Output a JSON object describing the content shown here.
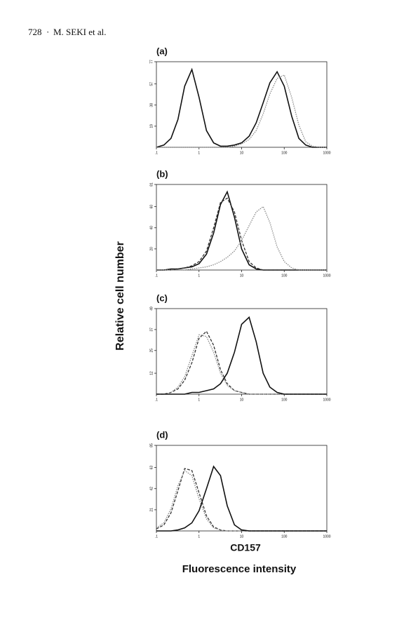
{
  "header": {
    "page": "728",
    "author": "M. SEKI et al."
  },
  "figure": {
    "ylabel": "Relative cell number",
    "marker": "CD157",
    "xlabel": "Fluorescence intensity"
  },
  "chart_data": [
    {
      "type": "line",
      "title": "(a)",
      "log_x": true,
      "x": [
        0.1,
        0.15,
        0.22,
        0.32,
        0.46,
        0.68,
        1,
        1.5,
        2.2,
        3.2,
        4.6,
        6.8,
        10,
        15,
        22,
        32,
        46,
        68,
        100,
        150,
        220,
        320,
        460,
        680,
        1000
      ],
      "xlim": [
        0.1,
        1000
      ],
      "xticks": [
        {
          "value": 0.1,
          "label": ".1"
        },
        1,
        10,
        100,
        1000
      ],
      "ylim": [
        0,
        77
      ],
      "yticks": [
        19,
        38,
        57,
        77
      ],
      "series": [
        {
          "color": "#111111",
          "style": "solid",
          "values": [
            0,
            2,
            8,
            25,
            55,
            70,
            45,
            15,
            4,
            1,
            1,
            2,
            4,
            10,
            22,
            40,
            58,
            68,
            55,
            28,
            8,
            2,
            0,
            0,
            0
          ]
        },
        {
          "color": "#888888",
          "style": "dotted",
          "values": [
            0,
            0,
            0,
            0,
            0,
            0,
            0,
            0,
            0,
            0,
            0,
            1,
            3,
            7,
            15,
            30,
            48,
            62,
            65,
            45,
            20,
            5,
            1,
            0,
            0
          ]
        }
      ]
    },
    {
      "type": "line",
      "title": "(b)",
      "log_x": true,
      "x": [
        0.1,
        0.15,
        0.22,
        0.32,
        0.46,
        0.68,
        1,
        1.5,
        2.2,
        3.2,
        4.6,
        6.8,
        10,
        15,
        22,
        32,
        46,
        68,
        100,
        150,
        220,
        320,
        460,
        680,
        1000
      ],
      "xlim": [
        0.1,
        1000
      ],
      "xticks": [
        {
          "value": 0.1,
          "label": ".1"
        },
        1,
        10,
        100,
        1000
      ],
      "ylim": [
        0,
        81
      ],
      "yticks": [
        20,
        40,
        60,
        81
      ],
      "series": [
        {
          "color": "#111111",
          "style": "solid",
          "values": [
            0,
            0,
            1,
            1,
            2,
            3,
            6,
            15,
            35,
            62,
            74,
            50,
            20,
            5,
            1,
            0,
            0,
            0,
            0,
            0,
            0,
            0,
            0,
            0,
            0
          ]
        },
        {
          "color": "#333333",
          "style": "dashed",
          "values": [
            0,
            0,
            0,
            1,
            2,
            4,
            8,
            18,
            40,
            64,
            68,
            55,
            28,
            8,
            2,
            0,
            0,
            0,
            0,
            0,
            0,
            0,
            0,
            0,
            0
          ]
        },
        {
          "color": "#888888",
          "style": "dotted",
          "values": [
            0,
            0,
            0,
            0,
            0,
            1,
            2,
            3,
            5,
            8,
            12,
            18,
            28,
            42,
            55,
            60,
            45,
            22,
            8,
            2,
            0,
            0,
            0,
            0,
            0
          ]
        }
      ]
    },
    {
      "type": "line",
      "title": "(c)",
      "log_x": true,
      "x": [
        0.1,
        0.15,
        0.22,
        0.32,
        0.46,
        0.68,
        1,
        1.5,
        2.2,
        3.2,
        4.6,
        6.8,
        10,
        15,
        22,
        32,
        46,
        68,
        100,
        150,
        220,
        320,
        460,
        680,
        1000
      ],
      "xlim": [
        0.1,
        1000
      ],
      "xticks": [
        {
          "value": 0.1,
          "label": ".1"
        },
        1,
        10,
        100,
        1000
      ],
      "ylim": [
        0,
        49
      ],
      "yticks": [
        12,
        25,
        37,
        49
      ],
      "series": [
        {
          "color": "#333333",
          "style": "dashed",
          "values": [
            0,
            0,
            1,
            3,
            8,
            18,
            32,
            36,
            28,
            14,
            6,
            2,
            1,
            0,
            0,
            0,
            0,
            0,
            0,
            0,
            0,
            0,
            0,
            0,
            0
          ]
        },
        {
          "color": "#888888",
          "style": "dotted",
          "values": [
            0,
            0,
            1,
            4,
            10,
            22,
            34,
            33,
            24,
            12,
            5,
            2,
            1,
            0,
            0,
            0,
            0,
            0,
            0,
            0,
            0,
            0,
            0,
            0,
            0
          ]
        },
        {
          "color": "#111111",
          "style": "solid",
          "values": [
            0,
            0,
            0,
            0,
            0,
            1,
            1,
            2,
            3,
            6,
            12,
            24,
            40,
            44,
            30,
            12,
            4,
            1,
            0,
            0,
            0,
            0,
            0,
            0,
            0
          ]
        }
      ]
    },
    {
      "type": "line",
      "title": "(d)",
      "log_x": true,
      "x": [
        0.1,
        0.15,
        0.22,
        0.32,
        0.46,
        0.68,
        1,
        1.5,
        2.2,
        3.2,
        4.6,
        6.8,
        10,
        15,
        22,
        32,
        46,
        68,
        100,
        150,
        220,
        320,
        460,
        680,
        1000
      ],
      "xlim": [
        0.1,
        1000
      ],
      "xticks": [
        {
          "value": 0.1,
          "label": ".1"
        },
        1,
        10,
        100,
        1000
      ],
      "ylim": [
        0,
        85
      ],
      "yticks": [
        21,
        42,
        63,
        85
      ],
      "series": [
        {
          "color": "#333333",
          "style": "dashed",
          "values": [
            2,
            6,
            18,
            40,
            62,
            60,
            38,
            15,
            4,
            1,
            0,
            0,
            0,
            0,
            0,
            0,
            0,
            0,
            0,
            0,
            0,
            0,
            0,
            0,
            0
          ]
        },
        {
          "color": "#888888",
          "style": "dotted",
          "values": [
            3,
            8,
            22,
            45,
            60,
            55,
            32,
            12,
            3,
            1,
            0,
            0,
            0,
            0,
            0,
            0,
            0,
            0,
            0,
            0,
            0,
            0,
            0,
            0,
            0
          ]
        },
        {
          "color": "#111111",
          "style": "solid",
          "values": [
            0,
            0,
            0,
            1,
            3,
            8,
            20,
            42,
            64,
            55,
            25,
            6,
            1,
            0,
            0,
            0,
            0,
            0,
            0,
            0,
            0,
            0,
            0,
            0,
            0
          ]
        }
      ]
    }
  ]
}
